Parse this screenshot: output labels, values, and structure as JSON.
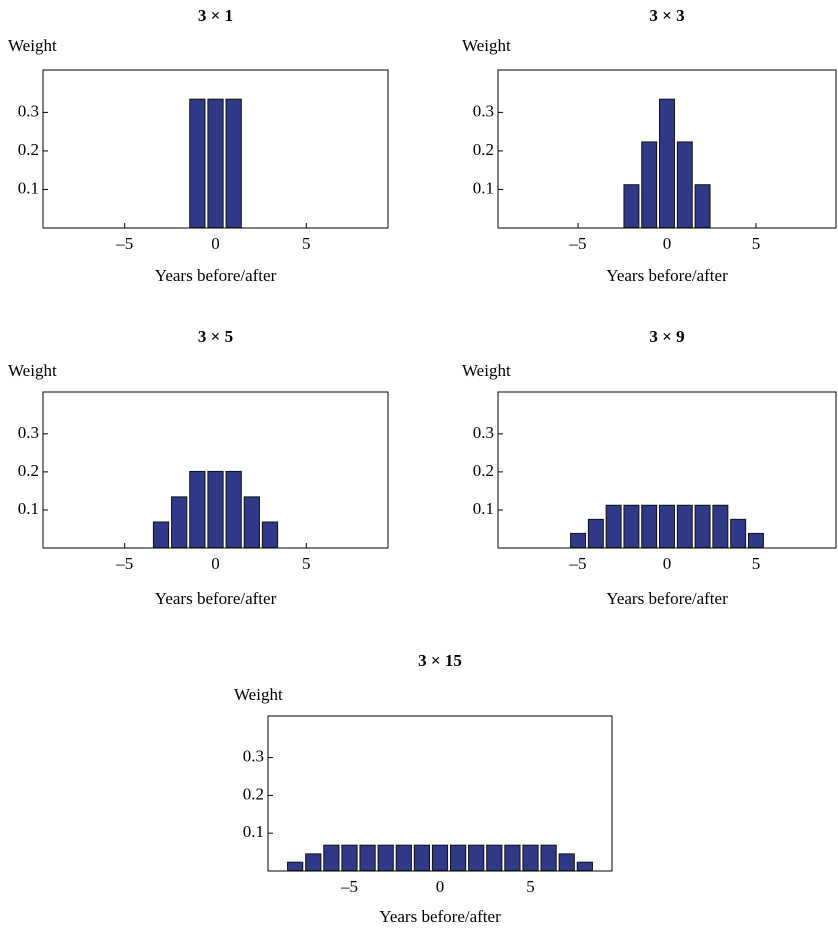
{
  "chart_data": [
    {
      "type": "bar",
      "title": "3 × 1",
      "y_label": "Weight",
      "x_label": "Years before/after",
      "color": "#2e3a87",
      "x": [
        -8,
        -7,
        -6,
        -5,
        -4,
        -3,
        -2,
        -1,
        0,
        1,
        2,
        3,
        4,
        5,
        6,
        7,
        8
      ],
      "values": [
        0,
        0,
        0,
        0,
        0,
        0,
        0,
        0.333,
        0.333,
        0.333,
        0,
        0,
        0,
        0,
        0,
        0,
        0
      ],
      "xlim": [
        -9.5,
        9.5
      ],
      "ylim": [
        0,
        0.41
      ],
      "xticks": [
        {
          "value": -5,
          "label": "–5"
        },
        0,
        5
      ],
      "yticks": [
        0.1,
        0.2,
        0.3
      ]
    },
    {
      "type": "bar",
      "title": "3 × 3",
      "y_label": "Weight",
      "x_label": "Years before/after",
      "color": "#2e3a87",
      "x": [
        -8,
        -7,
        -6,
        -5,
        -4,
        -3,
        -2,
        -1,
        0,
        1,
        2,
        3,
        4,
        5,
        6,
        7,
        8
      ],
      "values": [
        0,
        0,
        0,
        0,
        0,
        0,
        0.111,
        0.222,
        0.333,
        0.222,
        0.111,
        0,
        0,
        0,
        0,
        0,
        0
      ],
      "xlim": [
        -9.5,
        9.5
      ],
      "ylim": [
        0,
        0.41
      ],
      "xticks": [
        {
          "value": -5,
          "label": "–5"
        },
        0,
        5
      ],
      "yticks": [
        0.1,
        0.2,
        0.3
      ]
    },
    {
      "type": "bar",
      "title": "3 × 5",
      "y_label": "Weight",
      "x_label": "Years before/after",
      "color": "#2e3a87",
      "x": [
        -8,
        -7,
        -6,
        -5,
        -4,
        -3,
        -2,
        -1,
        0,
        1,
        2,
        3,
        4,
        5,
        6,
        7,
        8
      ],
      "values": [
        0,
        0,
        0,
        0,
        0,
        0.067,
        0.133,
        0.2,
        0.2,
        0.2,
        0.133,
        0.067,
        0,
        0,
        0,
        0,
        0
      ],
      "xlim": [
        -9.5,
        9.5
      ],
      "ylim": [
        0,
        0.41
      ],
      "xticks": [
        {
          "value": -5,
          "label": "–5"
        },
        0,
        5
      ],
      "yticks": [
        0.1,
        0.2,
        0.3
      ]
    },
    {
      "type": "bar",
      "title": "3 × 9",
      "y_label": "Weight",
      "x_label": "Years before/after",
      "color": "#2e3a87",
      "x": [
        -8,
        -7,
        -6,
        -5,
        -4,
        -3,
        -2,
        -1,
        0,
        1,
        2,
        3,
        4,
        5,
        6,
        7,
        8
      ],
      "values": [
        0,
        0,
        0,
        0.037,
        0.074,
        0.111,
        0.111,
        0.111,
        0.111,
        0.111,
        0.111,
        0.111,
        0.074,
        0.037,
        0,
        0,
        0
      ],
      "xlim": [
        -9.5,
        9.5
      ],
      "ylim": [
        0,
        0.41
      ],
      "xticks": [
        {
          "value": -5,
          "label": "–5"
        },
        0,
        5
      ],
      "yticks": [
        0.1,
        0.2,
        0.3
      ]
    },
    {
      "type": "bar",
      "title": "3 × 15",
      "y_label": "Weight",
      "x_label": "Years before/after",
      "color": "#2e3a87",
      "x": [
        -8,
        -7,
        -6,
        -5,
        -4,
        -3,
        -2,
        -1,
        0,
        1,
        2,
        3,
        4,
        5,
        6,
        7,
        8
      ],
      "values": [
        0.022,
        0.044,
        0.067,
        0.067,
        0.067,
        0.067,
        0.067,
        0.067,
        0.067,
        0.067,
        0.067,
        0.067,
        0.067,
        0.067,
        0.067,
        0.044,
        0.022
      ],
      "xlim": [
        -9.5,
        9.5
      ],
      "ylim": [
        0,
        0.41
      ],
      "xticks": [
        {
          "value": -5,
          "label": "–5"
        },
        0,
        5
      ],
      "yticks": [
        0.1,
        0.2,
        0.3
      ]
    }
  ]
}
